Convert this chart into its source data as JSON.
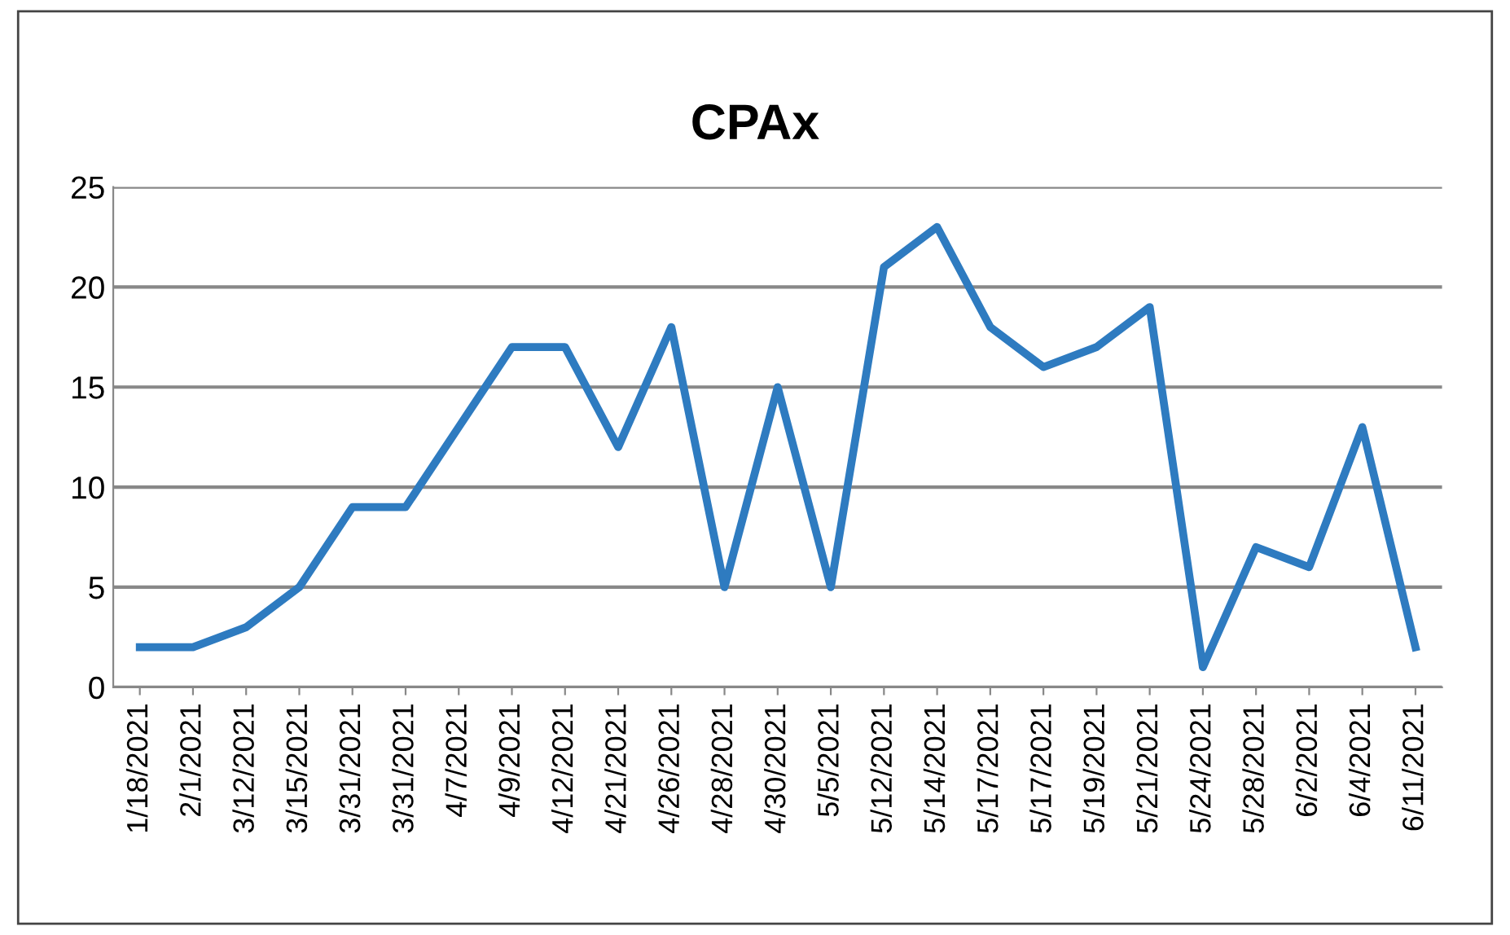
{
  "chart_data": {
    "type": "line",
    "title": "CPAx",
    "categories": [
      "1/18/2021",
      "2/1/2021",
      "3/12/2021",
      "3/15/2021",
      "3/31/2021",
      "3/31/2021",
      "4/7/2021",
      "4/9/2021",
      "4/12/2021",
      "4/21/2021",
      "4/26/2021",
      "4/28/2021",
      "4/30/2021",
      "5/5/2021",
      "5/12/2021",
      "5/14/2021",
      "5/17/2021",
      "5/17/2021",
      "5/19/2021",
      "5/21/2021",
      "5/24/2021",
      "5/28/2021",
      "6/2/2021",
      "6/4/2021",
      "6/11/2021"
    ],
    "series": [
      {
        "color": "#2e7bc0",
        "values": [
          2,
          2,
          3,
          5,
          9,
          9,
          13,
          17,
          17,
          12,
          18,
          5,
          15,
          5,
          21,
          23,
          18,
          16,
          17,
          19,
          1,
          7,
          6,
          13,
          2
        ]
      }
    ],
    "ylim": [
      0,
      25
    ],
    "yticks": [
      0,
      5,
      10,
      15,
      20,
      25
    ],
    "grid": "y",
    "marker": "none",
    "line_style": "solid"
  }
}
